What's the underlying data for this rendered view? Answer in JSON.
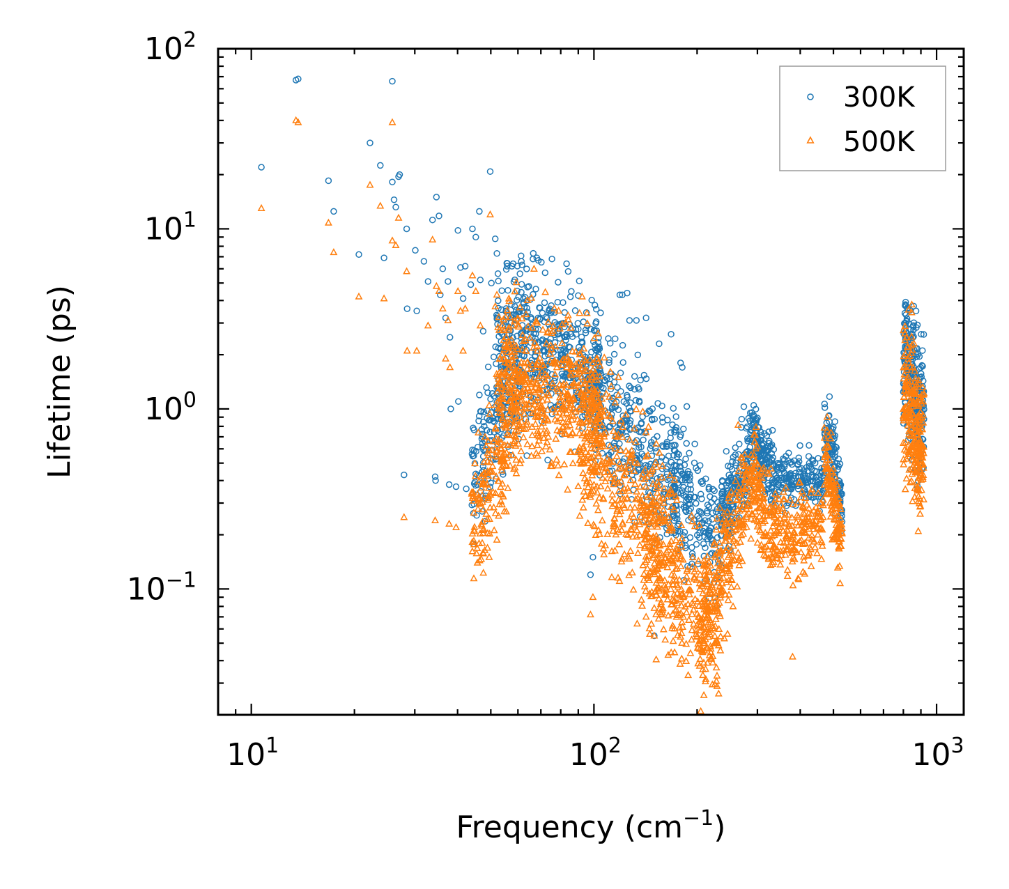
{
  "chart_data": {
    "type": "scatter",
    "xscale": "log",
    "yscale": "log",
    "xlabel": "Frequency (cm",
    "xlabel_exp": "−1",
    "xlabel_suffix": ")",
    "ylabel": "Lifetime (ps)",
    "xlim": [
      8,
      1200
    ],
    "ylim": [
      0.02,
      100
    ],
    "x_ticks": [
      {
        "value": 10,
        "base": "10",
        "exp": "1"
      },
      {
        "value": 100,
        "base": "10",
        "exp": "2"
      },
      {
        "value": 1000,
        "base": "10",
        "exp": "3"
      }
    ],
    "y_ticks": [
      {
        "value": 0.1,
        "base": "10",
        "exp": "−1"
      },
      {
        "value": 1,
        "base": "10",
        "exp": "0"
      },
      {
        "value": 10,
        "base": "10",
        "exp": "1"
      },
      {
        "value": 100,
        "base": "10",
        "exp": "2"
      }
    ],
    "legend_position": "top-right",
    "series": [
      {
        "name": "300K",
        "marker": "circle-open",
        "color": "#1f77b4",
        "points": [
          [
            10.7,
            22
          ],
          [
            13.5,
            67
          ],
          [
            13.7,
            68
          ],
          [
            16.8,
            18.5
          ],
          [
            17.4,
            12.5
          ],
          [
            20.6,
            7.2
          ],
          [
            22.2,
            30
          ],
          [
            23.8,
            22.5
          ],
          [
            24.4,
            6.9
          ],
          [
            25.8,
            66
          ],
          [
            25.8,
            18.2
          ],
          [
            26.1,
            14.5
          ],
          [
            26.4,
            13.2
          ],
          [
            26.9,
            19.5
          ],
          [
            27.1,
            20
          ],
          [
            27.9,
            0.43
          ],
          [
            28.4,
            10
          ],
          [
            28.5,
            3.6
          ],
          [
            30.1,
            7.6
          ],
          [
            30.4,
            3.5
          ],
          [
            31.9,
            6.6
          ],
          [
            32.8,
            5.1
          ],
          [
            33.8,
            11.2
          ],
          [
            34.4,
            0.42
          ],
          [
            34.5,
            0.4
          ],
          [
            34.7,
            15
          ],
          [
            35.3,
            11.8
          ],
          [
            35.6,
            4.3
          ],
          [
            36.2,
            6.0
          ],
          [
            36.9,
            3.2
          ],
          [
            37.5,
            5.1
          ],
          [
            37.8,
            0.38
          ],
          [
            38.0,
            2.5
          ],
          [
            38.2,
            1.0
          ],
          [
            39.6,
            0.37
          ],
          [
            40.1,
            9.8
          ],
          [
            40.2,
            1.1
          ],
          [
            40.8,
            6.1
          ],
          [
            41.5,
            4.1
          ],
          [
            42.1,
            6.2
          ],
          [
            42.4,
            0.36
          ],
          [
            43.7,
            4.9
          ],
          [
            44.2,
            10
          ],
          [
            44.6,
            0.55
          ],
          [
            45.2,
            9.0
          ],
          [
            46.3,
            12.5
          ],
          [
            46.6,
            5.2
          ],
          [
            47.2,
            0.39
          ],
          [
            47.5,
            2.7
          ],
          [
            49.8,
            20.8
          ],
          [
            50.2,
            5.0
          ],
          [
            51.5,
            8.8
          ],
          [
            52.1,
            7.3
          ],
          [
            55.8,
            6.2
          ],
          [
            57.6,
            6.2
          ],
          [
            58.1,
            6.4
          ],
          [
            61.4,
            6.6
          ],
          [
            63.7,
            0.55
          ],
          [
            66.4,
            6.8
          ],
          [
            68.1,
            6.9
          ],
          [
            73.3,
            0.52
          ],
          [
            75.4,
            6.8
          ],
          [
            83.2,
            6.4
          ],
          [
            84.1,
            5.8
          ],
          [
            97.7,
            0.12
          ],
          [
            99.3,
            0.15
          ],
          [
            119,
            4.3
          ],
          [
            121,
            4.3
          ],
          [
            125,
            4.4
          ],
          [
            127,
            3.1
          ],
          [
            133,
            3.1
          ],
          [
            142,
            3.2
          ],
          [
            150,
            0.055
          ],
          [
            155,
            2.3
          ],
          [
            168,
            2.6
          ],
          [
            179,
            1.8
          ],
          [
            181,
            1.7
          ],
          [
            216,
            0.2
          ],
          [
            220,
            0.19
          ],
          [
            237,
            0.4
          ],
          [
            255,
            0.54
          ],
          [
            269,
            0.52
          ],
          [
            290,
            0.92
          ],
          [
            297,
            0.88
          ],
          [
            345,
            0.5
          ],
          [
            355,
            0.47
          ],
          [
            425,
            0.48
          ],
          [
            442,
            0.5
          ],
          [
            487,
            1.17
          ],
          [
            505,
            0.85
          ],
          [
            523,
            0.3
          ],
          [
            811,
            3.8
          ],
          [
            822,
            3.6
          ],
          [
            871,
            3.5
          ],
          [
            902,
            2.6
          ]
        ],
        "clusters": [
          {
            "x": [
              44,
              62
            ],
            "y_trend": [
              0.4,
              2.0
            ],
            "spread": 0.18,
            "count": 200
          },
          {
            "x": [
              52,
              105
            ],
            "y_trend": [
              2.6,
              1.6
            ],
            "spread": 0.2,
            "count": 480
          },
          {
            "x": [
              100,
              175
            ],
            "y_trend": [
              1.2,
              0.38
            ],
            "spread": 0.2,
            "count": 320
          },
          {
            "x": [
              170,
              235
            ],
            "y_trend": [
              0.4,
              0.17
            ],
            "spread": 0.18,
            "count": 180
          },
          {
            "x": [
              235,
              290
            ],
            "y_trend": [
              0.25,
              0.62
            ],
            "spread": 0.12,
            "count": 180
          },
          {
            "x": [
              290,
              340
            ],
            "y_trend": [
              0.7,
              0.4
            ],
            "spread": 0.1,
            "count": 140
          },
          {
            "x": [
              340,
              470
            ],
            "y_trend": [
              0.4,
              0.4
            ],
            "spread": 0.07,
            "count": 170
          },
          {
            "x": [
              470,
              530
            ],
            "y_trend": [
              0.85,
              0.3
            ],
            "spread": 0.1,
            "count": 120
          },
          {
            "x": [
              800,
              920
            ],
            "y_trend": [
              2.0,
              0.9
            ],
            "spread": 0.2,
            "count": 260
          }
        ]
      },
      {
        "name": "500K",
        "marker": "triangle-open",
        "color": "#ff7f0e",
        "points": [
          [
            10.7,
            13
          ],
          [
            13.5,
            40
          ],
          [
            13.7,
            39
          ],
          [
            16.8,
            10.8
          ],
          [
            17.4,
            7.4
          ],
          [
            20.6,
            4.2
          ],
          [
            22.2,
            17.5
          ],
          [
            23.8,
            13.4
          ],
          [
            24.4,
            4.1
          ],
          [
            25.8,
            39
          ],
          [
            25.8,
            8.6
          ],
          [
            26.4,
            8.1
          ],
          [
            26.9,
            11.5
          ],
          [
            27.9,
            0.25
          ],
          [
            28.4,
            5.8
          ],
          [
            28.5,
            2.1
          ],
          [
            30.4,
            2.1
          ],
          [
            32.8,
            2.9
          ],
          [
            33.8,
            8.7
          ],
          [
            34.4,
            0.24
          ],
          [
            34.7,
            4.8
          ],
          [
            35.3,
            4.5
          ],
          [
            36.2,
            3.6
          ],
          [
            36.9,
            1.9
          ],
          [
            37.5,
            3.1
          ],
          [
            37.8,
            0.23
          ],
          [
            38.0,
            1.7
          ],
          [
            39.6,
            0.22
          ],
          [
            40.1,
            4.5
          ],
          [
            40.8,
            3.5
          ],
          [
            41.5,
            2.1
          ],
          [
            42.1,
            3.6
          ],
          [
            44.2,
            5.5
          ],
          [
            45.2,
            4.5
          ],
          [
            46.6,
            2.9
          ],
          [
            47.2,
            0.18
          ],
          [
            49.8,
            12
          ],
          [
            51.5,
            3.7
          ],
          [
            52.1,
            4.3
          ],
          [
            97.7,
            0.072
          ],
          [
            99.3,
            0.09
          ],
          [
            142,
            0.07
          ],
          [
            150,
            0.055
          ],
          [
            380,
            0.042
          ],
          [
            442,
            0.17
          ],
          [
            505,
            0.42
          ]
        ],
        "clusters": [
          {
            "x": [
              44,
              62
            ],
            "y_trend": [
              0.22,
              1.2
            ],
            "spread": 0.2,
            "count": 220
          },
          {
            "x": [
              52,
              105
            ],
            "y_trend": [
              1.6,
              1.0
            ],
            "spread": 0.22,
            "count": 520
          },
          {
            "x": [
              90,
              175
            ],
            "y_trend": [
              0.7,
              0.16
            ],
            "spread": 0.25,
            "count": 380
          },
          {
            "x": [
              140,
              235
            ],
            "y_trend": [
              0.2,
              0.05
            ],
            "spread": 0.22,
            "count": 300
          },
          {
            "x": [
              200,
              290
            ],
            "y_trend": [
              0.05,
              0.4
            ],
            "spread": 0.18,
            "count": 260
          },
          {
            "x": [
              290,
              340
            ],
            "y_trend": [
              0.4,
              0.2
            ],
            "spread": 0.15,
            "count": 140
          },
          {
            "x": [
              340,
              470
            ],
            "y_trend": [
              0.2,
              0.22
            ],
            "spread": 0.12,
            "count": 180
          },
          {
            "x": [
              470,
              530
            ],
            "y_trend": [
              0.6,
              0.18
            ],
            "spread": 0.12,
            "count": 130
          },
          {
            "x": [
              800,
              920
            ],
            "y_trend": [
              1.3,
              0.55
            ],
            "spread": 0.22,
            "count": 260
          }
        ]
      }
    ]
  }
}
